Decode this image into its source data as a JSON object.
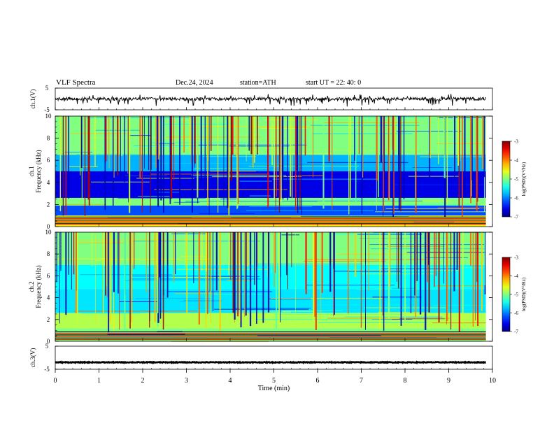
{
  "header": {
    "title": "VLF  Spectra",
    "date": "Dec.24, 2024",
    "station": "station=ATH",
    "start": "start  UT  =    22: 40: 0"
  },
  "chart_data": [
    {
      "type": "line",
      "panel": "ch1-waveform",
      "ylabel": "ch.1(V)",
      "ylim": [
        -5,
        5
      ],
      "yticks": [
        "5",
        "-5"
      ],
      "xlim": [
        0,
        10
      ],
      "baseline_v": 0,
      "note": "noisy waveform around 0 V with spikes toward -2 V"
    },
    {
      "type": "heatmap",
      "panel": "ch1-spectrogram",
      "ylabel": "ch.1\nFrequency  (kHz)",
      "ylim": [
        0,
        10
      ],
      "yticks": [
        "0",
        "2",
        "4",
        "6",
        "8",
        "10"
      ],
      "xlim": [
        0,
        9.85
      ],
      "colorbar": {
        "label": "log(PSD)(V²/Hz)",
        "range": [
          -7,
          -3
        ],
        "ticks": [
          "-3",
          "-4",
          "-5",
          "-6",
          "-7"
        ]
      },
      "bands": [
        {
          "from_khz": 0,
          "to_khz": 1,
          "log_psd": -4.5
        },
        {
          "from_khz": 1,
          "to_khz": 1.9,
          "log_psd": -6.2
        },
        {
          "from_khz": 1.9,
          "to_khz": 2.6,
          "log_psd": -5.0
        },
        {
          "from_khz": 2.6,
          "to_khz": 5.0,
          "log_psd": -6.6
        },
        {
          "from_khz": 5.0,
          "to_khz": 6.5,
          "log_psd": -5.8
        },
        {
          "from_khz": 6.5,
          "to_khz": 10,
          "log_psd": -5.0
        }
      ]
    },
    {
      "type": "heatmap",
      "panel": "ch2-spectrogram",
      "ylabel": "ch.2\nFrequency  (kHz)",
      "ylim": [
        0,
        10
      ],
      "yticks": [
        "0",
        "2",
        "4",
        "6",
        "8",
        "10"
      ],
      "xlim": [
        0,
        9.85
      ],
      "colorbar": {
        "label": "log(PSD)(V²/Hz)",
        "range": [
          -7,
          -3
        ],
        "ticks": [
          "-3",
          "-4",
          "-5",
          "-6",
          "-7"
        ]
      },
      "bands": [
        {
          "from_khz": 0,
          "to_khz": 1.2,
          "log_psd": -5.0
        },
        {
          "from_khz": 1.2,
          "to_khz": 2.6,
          "log_psd": -4.8
        },
        {
          "from_khz": 2.6,
          "to_khz": 4.8,
          "log_psd": -5.6
        },
        {
          "from_khz": 4.8,
          "to_khz": 7,
          "log_psd": -5.5
        },
        {
          "from_khz": 7,
          "to_khz": 10,
          "log_psd": -5.0
        }
      ]
    },
    {
      "type": "line",
      "panel": "ch3-waveform",
      "ylabel": "ch.3(V)",
      "ylim": [
        -5,
        5
      ],
      "yticks": [
        "5",
        "-5"
      ],
      "xlim": [
        0,
        10
      ],
      "baseline_v": -2,
      "xlabel": "Time  (min)",
      "xticks": [
        "0",
        "1",
        "2",
        "3",
        "4",
        "5",
        "6",
        "7",
        "8",
        "9",
        "10"
      ]
    }
  ]
}
